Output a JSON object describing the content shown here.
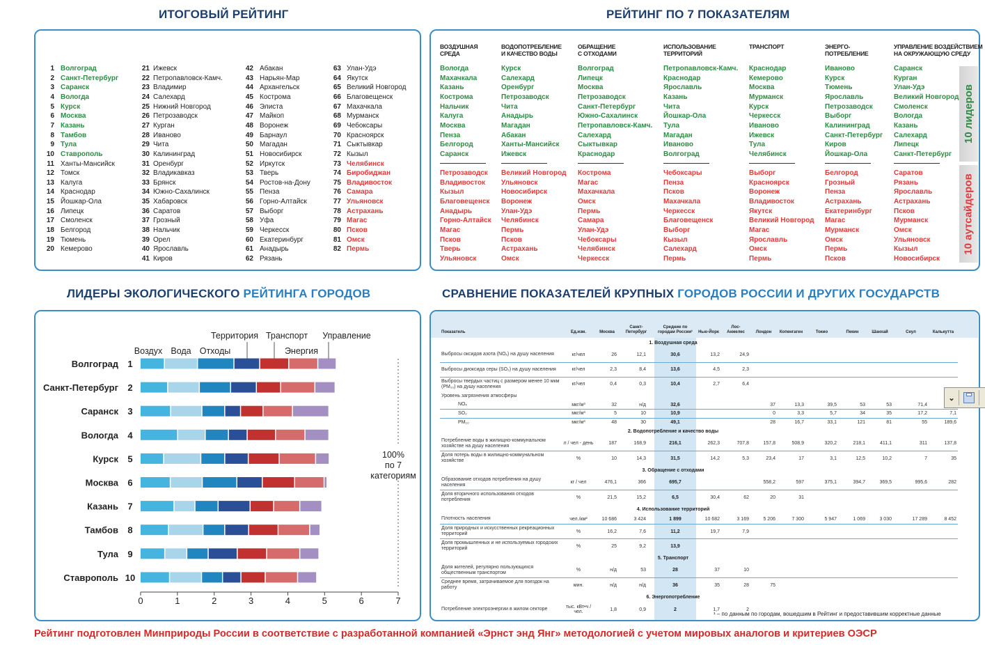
{
  "titles": {
    "final_rating": "ИТОГОВЫЙ РЕЙТИНГ",
    "by_indicators": "РЕЙТИНГ ПО 7 ПОКАЗАТЕЛЯМ",
    "leaders_dark": "ЛИДЕРЫ ЭКОЛОГИЧЕСКОГО ",
    "leaders_light": "РЕЙТИНГА ГОРОДОВ",
    "compare_dark": "СРАВНЕНИЕ ПОКАЗАТЕЛЕЙ КРУПНЫХ ",
    "compare_light": "ГОРОДОВ РОССИИ И ДРУГИХ ГОСУДАРСТВ"
  },
  "colors": {
    "title": "#1d3f6e",
    "title_light": "#2a7fc0",
    "leader": "#2e8b45",
    "outsider": "#e03a3a",
    "border": "#3a8fc8",
    "footer": "#d42a2a"
  },
  "final_rating": {
    "items": [
      {
        "rank": "1",
        "city": "Волгоград"
      },
      {
        "rank": "2",
        "city": "Санкт-Петербург"
      },
      {
        "rank": "3",
        "city": "Саранск"
      },
      {
        "rank": "4",
        "city": "Вологда"
      },
      {
        "rank": "5",
        "city": "Курск"
      },
      {
        "rank": "6",
        "city": "Москва"
      },
      {
        "rank": "7",
        "city": "Казань"
      },
      {
        "rank": "8",
        "city": "Тамбов"
      },
      {
        "rank": "9",
        "city": "Тула"
      },
      {
        "rank": "10",
        "city": "Ставрополь"
      },
      {
        "rank": "11",
        "city": "Ханты-Мансийск"
      },
      {
        "rank": "12",
        "city": "Томск"
      },
      {
        "rank": "13",
        "city": "Калуга"
      },
      {
        "rank": "14",
        "city": "Краснодар"
      },
      {
        "rank": "15",
        "city": "Йошкар-Ола"
      },
      {
        "rank": "16",
        "city": "Липецк"
      },
      {
        "rank": "17",
        "city": "Смоленск"
      },
      {
        "rank": "18",
        "city": "Белгород"
      },
      {
        "rank": "19",
        "city": "Тюмень"
      },
      {
        "rank": "20",
        "city": "Кемерово"
      },
      {
        "rank": "21",
        "city": "Ижевск"
      },
      {
        "rank": "22",
        "city": "Петропавловск-Камч."
      },
      {
        "rank": "23",
        "city": "Владимир"
      },
      {
        "rank": "24",
        "city": "Салехард"
      },
      {
        "rank": "25",
        "city": "Нижний Новгород"
      },
      {
        "rank": "26",
        "city": "Петрозаводск"
      },
      {
        "rank": "27",
        "city": "Курган"
      },
      {
        "rank": "28",
        "city": "Иваново"
      },
      {
        "rank": "29",
        "city": "Чита"
      },
      {
        "rank": "30",
        "city": "Калининград"
      },
      {
        "rank": "31",
        "city": "Оренбург"
      },
      {
        "rank": "32",
        "city": "Владикавказ"
      },
      {
        "rank": "33",
        "city": "Брянск"
      },
      {
        "rank": "34",
        "city": "Южно-Сахалинск"
      },
      {
        "rank": "35",
        "city": "Хабаровск"
      },
      {
        "rank": "36",
        "city": "Саратов"
      },
      {
        "rank": "37",
        "city": "Грозный"
      },
      {
        "rank": "38",
        "city": "Нальчик"
      },
      {
        "rank": "39",
        "city": "Орел"
      },
      {
        "rank": "40",
        "city": "Ярославль"
      },
      {
        "rank": "41",
        "city": "Киров"
      },
      {
        "rank": "42",
        "city": "Абакан"
      },
      {
        "rank": "43",
        "city": "Нарьян-Мар"
      },
      {
        "rank": "44",
        "city": "Архангельск"
      },
      {
        "rank": "45",
        "city": "Кострома"
      },
      {
        "rank": "46",
        "city": "Элиста"
      },
      {
        "rank": "47",
        "city": "Майкоп"
      },
      {
        "rank": "48",
        "city": "Воронеж"
      },
      {
        "rank": "49",
        "city": "Барнаул"
      },
      {
        "rank": "50",
        "city": "Магадан"
      },
      {
        "rank": "51",
        "city": "Новосибирск"
      },
      {
        "rank": "52",
        "city": "Иркутск"
      },
      {
        "rank": "53",
        "city": "Тверь"
      },
      {
        "rank": "54",
        "city": "Ростов-на-Дону"
      },
      {
        "rank": "55",
        "city": "Пенза"
      },
      {
        "rank": "56",
        "city": "Горно-Алтайск"
      },
      {
        "rank": "57",
        "city": "Выборг"
      },
      {
        "rank": "58",
        "city": "Уфа"
      },
      {
        "rank": "59",
        "city": "Черкесск"
      },
      {
        "rank": "60",
        "city": "Екатеринбург"
      },
      {
        "rank": "61",
        "city": "Анадырь"
      },
      {
        "rank": "62",
        "city": "Рязань"
      },
      {
        "rank": "63",
        "city": "Улан-Удэ"
      },
      {
        "rank": "64",
        "city": "Якутск"
      },
      {
        "rank": "65",
        "city": "Великий Новгород"
      },
      {
        "rank": "66",
        "city": "Благовещенск"
      },
      {
        "rank": "67",
        "city": "Махачкала"
      },
      {
        "rank": "68",
        "city": "Мурманск"
      },
      {
        "rank": "69",
        "city": "Чебоксары"
      },
      {
        "rank": "70",
        "city": "Красноярск"
      },
      {
        "rank": "71",
        "city": "Сыктывкар"
      },
      {
        "rank": "72",
        "city": "Кызыл"
      },
      {
        "rank": "73",
        "city": "Челябинск"
      },
      {
        "rank": "74",
        "city": "Биробиджан"
      },
      {
        "rank": "75",
        "city": "Владивосток"
      },
      {
        "rank": "76",
        "city": "Самара"
      },
      {
        "rank": "77",
        "city": "Ульяновск"
      },
      {
        "rank": "78",
        "city": "Астрахань"
      },
      {
        "rank": "79",
        "city": "Магас"
      },
      {
        "rank": "80",
        "city": "Псков"
      },
      {
        "rank": "81",
        "city": "Омск"
      },
      {
        "rank": "82",
        "city": "Пермь"
      }
    ]
  },
  "indicators": {
    "side_leaders": "10 лидеров",
    "side_outsiders": "10 аутсайдеров",
    "categories": [
      {
        "title1": "ВОЗДУШНАЯ",
        "title2": "СРЕДА",
        "leaders": [
          "Вологда",
          "Махачкала",
          "Казань",
          "Кострома",
          "Нальчик",
          "Калуга",
          "Москва",
          "Пенза",
          "Белгород",
          "Саранск"
        ],
        "outsiders": [
          "Петрозаводск",
          "Владивосток",
          "Кызыл",
          "Благовещенск",
          "Анадырь",
          "Горно-Алтайск",
          "Магас",
          "Псков",
          "Тверь",
          "Ульяновск"
        ]
      },
      {
        "title1": "ВОДОПОТРЕБЛЕНИЕ",
        "title2": "И КАЧЕСТВО ВОДЫ",
        "leaders": [
          "Курск",
          "Салехард",
          "Оренбург",
          "Петрозаводск",
          "Чита",
          "Анадырь",
          "Магадан",
          "Абакан",
          "Ханты-Мансийск",
          "Ижевск"
        ],
        "outsiders": [
          "Великий Новгород",
          "Ульяновск",
          "Новосибирск",
          "Воронеж",
          "Улан-Удэ",
          "Челябинск",
          "Пермь",
          "Псков",
          "Астрахань",
          "Омск"
        ]
      },
      {
        "title1": "ОБРАЩЕНИЕ",
        "title2": "С ОТХОДАМИ",
        "leaders": [
          "Волгоград",
          "Липецк",
          "Москва",
          "Петрозаводск",
          "Санкт-Петербург",
          "Южно-Сахалинск",
          "Петропавловск-Камч.",
          "Салехард",
          "Сыктывкар",
          "Краснодар"
        ],
        "outsiders": [
          "Кострома",
          "Магас",
          "Махачкала",
          "Омск",
          "Пермь",
          "Самара",
          "Улан-Удэ",
          "Чебоксары",
          "Челябинск",
          "Черкесск"
        ]
      },
      {
        "title1": "ИСПОЛЬЗОВАНИЕ",
        "title2": "ТЕРРИТОРИЙ",
        "leaders": [
          "Петропавловск-Камч.",
          "Краснодар",
          "Ярославль",
          "Казань",
          "Чита",
          "Йошкар-Ола",
          "Тула",
          "Магадан",
          "Иваново",
          "Волгоград"
        ],
        "outsiders": [
          "Чебоксары",
          "Пенза",
          "Псков",
          "Махачкала",
          "Черкесск",
          "Благовещенск",
          "Выборг",
          "Кызыл",
          "Салехард",
          "Пермь"
        ]
      },
      {
        "title1": "ТРАНСПОРТ",
        "title2": "",
        "leaders": [
          "Краснодар",
          "Кемерово",
          "Москва",
          "Мурманск",
          "Курск",
          "Черкесск",
          "Иваново",
          "Ижевск",
          "Тула",
          "Челябинск"
        ],
        "outsiders": [
          "Выборг",
          "Красноярск",
          "Воронеж",
          "Владивосток",
          "Якутск",
          "Великий Новгород",
          "Магас",
          "Ярославль",
          "Омск",
          "Пермь"
        ]
      },
      {
        "title1": "ЭНЕРГО-",
        "title2": "ПОТРЕБЛЕНИЕ",
        "leaders": [
          "Иваново",
          "Курск",
          "Тюмень",
          "Ярославль",
          "Петрозаводск",
          "Выборг",
          "Калининград",
          "Санкт-Петербург",
          "Киров",
          "Йошкар-Ола"
        ],
        "outsiders": [
          "Белгород",
          "Грозный",
          "Пенза",
          "Астрахань",
          "Екатеринбург",
          "Магас",
          "Мурманск",
          "Омск",
          "Пермь",
          "Псков"
        ]
      },
      {
        "title1": "УПРАВЛЕНИЕ ВОЗДЕЙСТВИЕМ",
        "title2": "НА ОКРУЖАЮЩУЮ СРЕДУ",
        "leaders": [
          "Саранск",
          "Курган",
          "Улан-Удэ",
          "Великий Новгород",
          "Смоленск",
          "Вологда",
          "Казань",
          "Салехард",
          "Липецк",
          "Санкт-Петербург"
        ],
        "outsiders": [
          "Саратов",
          "Рязань",
          "Ярославль",
          "Астрахань",
          "Псков",
          "Мурманск",
          "Омск",
          "Ульяновск",
          "Кызыл",
          "Новосибирск"
        ]
      }
    ]
  },
  "chart_data": {
    "type": "bar",
    "orientation": "horizontal",
    "stacked": true,
    "categories": [
      "Волгоград",
      "Санкт-Петербург",
      "Саранск",
      "Вологда",
      "Курск",
      "Москва",
      "Казань",
      "Тамбов",
      "Тула",
      "Ставрополь"
    ],
    "ranks": [
      "1",
      "2",
      "3",
      "4",
      "5",
      "6",
      "7",
      "8",
      "9",
      "10"
    ],
    "series": [
      {
        "name": "Воздух",
        "color": "#45b5e0",
        "values": [
          0.66,
          0.75,
          0.83,
          1.02,
          0.64,
          0.82,
          0.92,
          0.77,
          0.67,
          0.8
        ]
      },
      {
        "name": "Вода",
        "color": "#a8d5ea",
        "values": [
          0.9,
          0.86,
          0.85,
          0.75,
          1.01,
          0.87,
          0.57,
          0.94,
          0.6,
          0.87
        ]
      },
      {
        "name": "Отходы",
        "color": "#2185c0",
        "values": [
          0.99,
          0.85,
          0.62,
          0.63,
          0.65,
          0.94,
          0.63,
          0.59,
          0.58,
          0.57
        ]
      },
      {
        "name": "Территория",
        "color": "#2a4f96",
        "values": [
          0.7,
          0.7,
          0.43,
          0.51,
          0.64,
          0.69,
          0.87,
          0.65,
          0.79,
          0.5
        ]
      },
      {
        "name": "Транспорт",
        "color": "#c1312f",
        "values": [
          0.79,
          0.66,
          0.61,
          0.77,
          0.84,
          0.88,
          0.64,
          0.8,
          0.8,
          0.66
        ]
      },
      {
        "name": "Энергия",
        "color": "#d66b6b",
        "values": [
          0.79,
          0.93,
          0.8,
          0.8,
          0.99,
          0.8,
          0.71,
          0.86,
          0.9,
          0.88
        ]
      },
      {
        "name": "Управление",
        "color": "#a48fc2",
        "values": [
          0.5,
          0.55,
          0.99,
          0.65,
          0.37,
          0.08,
          0.6,
          0.28,
          0.52,
          0.52
        ]
      }
    ],
    "xlim": [
      0,
      7
    ],
    "xticks": [
      "0",
      "1",
      "2",
      "3",
      "4",
      "5",
      "6",
      "7"
    ],
    "reference_line": {
      "value": 7,
      "label_lines": [
        "100%",
        "по 7",
        "категориям"
      ]
    },
    "grid": false,
    "legend_placement": "top"
  },
  "comparison": {
    "headers": [
      "Показатель",
      "Ед.изм.",
      "Москва",
      "Санкт-Петербург",
      "Средние по городам России¹",
      "Нью-Йорк",
      "Лос-Анжелес",
      "Лондон",
      "Копенгаген",
      "Токио",
      "Пекин",
      "Шанхай",
      "Сеул",
      "Калькутта"
    ],
    "rows": [
      {
        "type": "section",
        "label": "1. Воздушная среда"
      },
      {
        "type": "row",
        "label": "Выбросы оксидов азота (NOₓ) на душу населения",
        "unit": "кг/чел",
        "values": [
          "26",
          "12,1",
          "30,6",
          "13,2",
          "24,9",
          "",
          "",
          "",
          "",
          "",
          "",
          ""
        ],
        "line": true
      },
      {
        "type": "row",
        "label": "Выбросы диоксида серы (SO₂) на душу населения",
        "unit": "кг/чел",
        "values": [
          "2,3",
          "8,4",
          "13,6",
          "4,5",
          "2,3",
          "",
          "",
          "",
          "",
          "",
          "",
          ""
        ],
        "line": true
      },
      {
        "type": "row",
        "label": "Выбросы твердых частиц с размером менее 10 мкм (PM₁₀) на душу населения",
        "unit": "кг/чел",
        "values": [
          "0,4",
          "0,3",
          "10,4",
          "2,7",
          "6,4",
          "",
          "",
          "",
          "",
          "",
          "",
          ""
        ]
      },
      {
        "type": "label",
        "label": "Уровень загрязнения атмосферы"
      },
      {
        "type": "sub",
        "label": "NOₓ",
        "unit": "мкг/м³",
        "values": [
          "32",
          "н/д",
          "32,6",
          "",
          "",
          "37",
          "13,3",
          "39,5",
          "53",
          "53",
          "71,4",
          ""
        ],
        "line": true
      },
      {
        "type": "sub",
        "label": "SO₂",
        "unit": "мкг/м³",
        "values": [
          "5",
          "10",
          "10,9",
          "",
          "",
          "0",
          "3,3",
          "5,7",
          "34",
          "35",
          "17,2",
          "7,1"
        ],
        "line": true
      },
      {
        "type": "sub",
        "label": "PM₁₀",
        "unit": "мкг/м³",
        "values": [
          "48",
          "30",
          "49,1",
          "",
          "",
          "28",
          "16,7",
          "33,1",
          "121",
          "81",
          "55",
          "189,6"
        ]
      },
      {
        "type": "section",
        "label": "2. Водопотребление и качество воды"
      },
      {
        "type": "row",
        "label": "Потребление воды в жилищно-коммунальном хозяйстве на душу населения",
        "unit": "л / чел - день",
        "values": [
          "187",
          "168,9",
          "216,1",
          "262,3",
          "707,8",
          "157,8",
          "508,9",
          "320,2",
          "218,1",
          "411,1",
          "311",
          "137,8"
        ],
        "line": true
      },
      {
        "type": "row",
        "label": "Доля потерь воды в жилищно-коммунальном хозяйстве",
        "unit": "%",
        "values": [
          "10",
          "14,3",
          "31,5",
          "14,2",
          "5,3",
          "23,4",
          "17",
          "3,1",
          "12,5",
          "10,2",
          "7",
          "35"
        ]
      },
      {
        "type": "section",
        "label": "3. Обращение с отходами"
      },
      {
        "type": "row",
        "label": "Образование отходов потребления на душу населения",
        "unit": "кг / чел",
        "values": [
          "476,1",
          "366",
          "695,7",
          "",
          "",
          "558,2",
          "597",
          "375,1",
          "394,7",
          "369,5",
          "995,6",
          "282"
        ],
        "line": true
      },
      {
        "type": "row",
        "label": "Доля вторичного использования отходов потребления",
        "unit": "%",
        "values": [
          "21,5",
          "15,2",
          "6,5",
          "30,4",
          "62",
          "20",
          "31",
          "",
          "",
          "",
          "",
          ""
        ]
      },
      {
        "type": "section",
        "label": "4. Использование территорий"
      },
      {
        "type": "row1",
        "label": "Плотность населения",
        "unit": "чел./км²",
        "values": [
          "10 686",
          "3 424",
          "1 899",
          "10 682",
          "3 169",
          "5 206",
          "7 300",
          "5 947",
          "1 069",
          "3 030",
          "17 289",
          "8 452"
        ],
        "line": true
      },
      {
        "type": "row",
        "label": "Доля природных и искусственных рекреационных территорий",
        "unit": "%",
        "values": [
          "16,2",
          "7,6",
          "11,2",
          "19,7",
          "7,9",
          "",
          "",
          "",
          "",
          "",
          "",
          ""
        ],
        "line": true
      },
      {
        "type": "row",
        "label": "Доля промышленных и не используемых городских территорий",
        "unit": "%",
        "values": [
          "25",
          "9,2",
          "13,9",
          "",
          "",
          "",
          "",
          "",
          "",
          "",
          "",
          ""
        ]
      },
      {
        "type": "section",
        "label": "5. Транспорт"
      },
      {
        "type": "row",
        "label": "Доля жителей, регулярно пользующихся общественным транспортом",
        "unit": "%",
        "values": [
          "н/д",
          "53",
          "28",
          "37",
          "10",
          "",
          "",
          "",
          "",
          "",
          "",
          ""
        ],
        "line": true
      },
      {
        "type": "row",
        "label": "Среднее время, затрачиваемое для поездок на работу",
        "unit": "мин.",
        "values": [
          "н/д",
          "н/д",
          "36",
          "35",
          "28",
          "75",
          "",
          "",
          "",
          "",
          "",
          ""
        ]
      },
      {
        "type": "section",
        "label": "6. Энергопотребление"
      },
      {
        "type": "row",
        "label": "Потребление электроэнергии в жилом секторе",
        "unit": "тыс. кВт•ч / чел.",
        "values": [
          "1,8",
          "0,9",
          "2",
          "1,7",
          "2",
          "",
          "",
          "",
          "",
          "",
          "",
          ""
        ]
      }
    ],
    "footnote": "¹ – по данным по городам, вошедшим в Рейтинг и предоставившим корректные данные"
  },
  "footer": "Рейтинг подготовлен Минприроды России в соответствие с разработанной компанией «Эрнст энд Янг» методологией с учетом мировых аналогов и критериев ОЭСР",
  "toolbar": {
    "icons": [
      "chevron-double-down-icon",
      "save-icon"
    ]
  }
}
